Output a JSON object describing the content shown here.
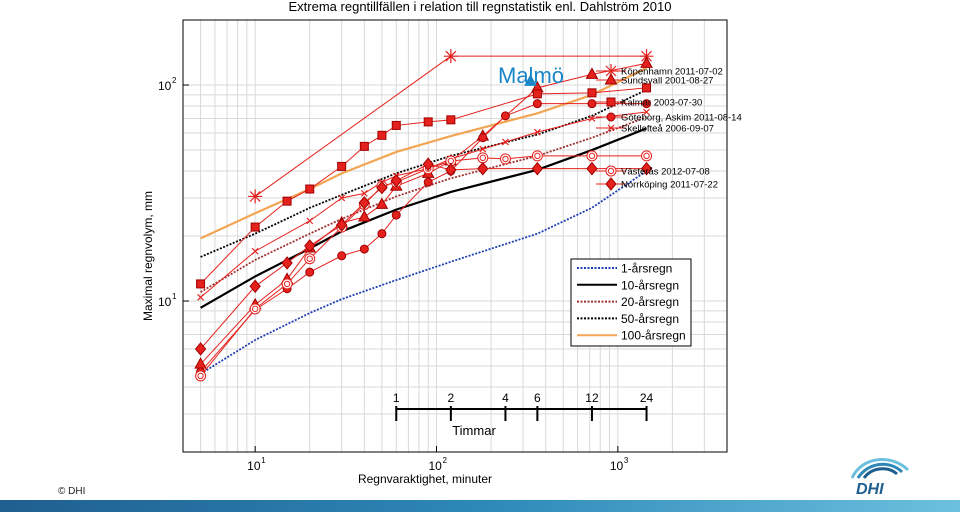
{
  "chart_data": {
    "type": "line",
    "title": "Extrema regntillfällen i relation till regnstatistik enl. Dahlström 2010",
    "xlabel": "Regnvaraktighet, minuter",
    "ylabel": "Maximal regnvolym, mm",
    "x_scale": "log",
    "y_scale": "log",
    "xlim": [
      4,
      4000
    ],
    "ylim": [
      2,
      200
    ],
    "grid": true,
    "x_ticks": [
      {
        "value": 10,
        "base": "10",
        "exp": "1"
      },
      {
        "value": 100,
        "base": "10",
        "exp": "2"
      },
      {
        "value": 1000,
        "base": "10",
        "exp": "3"
      }
    ],
    "y_ticks": [
      {
        "value": 10,
        "base": "10",
        "exp": "1"
      },
      {
        "value": 100,
        "base": "10",
        "exp": "2"
      }
    ],
    "annotations": {
      "city_label": "Malmö",
      "timmar_label": "Timmar",
      "hour_ticks": [
        {
          "label": "1",
          "minutes": 60
        },
        {
          "label": "2",
          "minutes": 120
        },
        {
          "label": "4",
          "minutes": 240
        },
        {
          "label": "6",
          "minutes": 360
        },
        {
          "label": "12",
          "minutes": 720
        },
        {
          "label": "24",
          "minutes": 1440
        }
      ]
    },
    "statistic_series": [
      {
        "name": "1-årsregn",
        "color": "#1f3fb5",
        "style": "dotted",
        "x": [
          5,
          10,
          20,
          30,
          60,
          120,
          360,
          720,
          1440
        ],
        "y": [
          4.6,
          6.6,
          8.8,
          10.2,
          12.5,
          15.2,
          20.5,
          27,
          40
        ]
      },
      {
        "name": "10-årsregn",
        "color": "#000000",
        "style": "solid",
        "x": [
          5,
          10,
          20,
          30,
          60,
          120,
          360,
          720,
          1440
        ],
        "y": [
          9.3,
          13,
          17.5,
          21,
          26.5,
          32,
          40.5,
          50,
          63
        ]
      },
      {
        "name": "20-årsregn",
        "color": "#a03030",
        "style": "dotted",
        "x": [
          5,
          10,
          20,
          30,
          60,
          120,
          360,
          720,
          1440
        ],
        "y": [
          11,
          15.5,
          20.5,
          24,
          30.5,
          37,
          47,
          57,
          71
        ]
      },
      {
        "name": "50-årsregn",
        "color": "#000000",
        "style": "dotted",
        "x": [
          5,
          10,
          20,
          30,
          60,
          120,
          360,
          720,
          1440
        ],
        "y": [
          16,
          20.5,
          27,
          31,
          39,
          47,
          59,
          72,
          95
        ]
      },
      {
        "name": "100-årsregn",
        "color": "#f2a552",
        "style": "solid",
        "x": [
          5,
          10,
          20,
          30,
          60,
          120,
          360,
          720,
          1440
        ],
        "y": [
          19.5,
          25.5,
          33,
          39,
          49,
          58,
          74,
          90,
          120
        ]
      }
    ],
    "event_series": [
      {
        "name": "Köpenhamn 2011-07-02",
        "marker": "asterisk",
        "filled": false,
        "x": [
          10,
          120,
          1440
        ],
        "y": [
          30.5,
          136,
          136
        ]
      },
      {
        "name": "Sundsvall 2001-08-27",
        "marker": "triangle",
        "filled": true,
        "x": [
          5,
          10,
          15,
          20,
          30,
          40,
          50,
          60,
          90,
          120,
          180,
          360,
          720,
          1440
        ],
        "y": [
          5.1,
          9.6,
          12.6,
          17.6,
          23,
          24.5,
          28,
          34,
          39,
          44.5,
          58,
          97,
          112,
          126
        ]
      },
      {
        "name": "Kalmar 2003-07-30",
        "marker": "square",
        "filled": true,
        "x": [
          5,
          10,
          15,
          20,
          30,
          40,
          50,
          60,
          90,
          120,
          360,
          720,
          1440
        ],
        "y": [
          12,
          22,
          29,
          33,
          42,
          52,
          58.5,
          65,
          67.5,
          69,
          91,
          92,
          97
        ]
      },
      {
        "name": "Göteborg, Askim 2011-08-14",
        "marker": "circle",
        "filled": true,
        "x": [
          5,
          10,
          15,
          20,
          30,
          40,
          50,
          60,
          90,
          120,
          180,
          240,
          360,
          720,
          1440
        ],
        "y": [
          4.7,
          9.1,
          11.4,
          13.6,
          16.2,
          17.4,
          20.5,
          25,
          35.5,
          40,
          57,
          72,
          82,
          82,
          82
        ]
      },
      {
        "name": "Skellefteå 2006-09-07",
        "marker": "x",
        "filled": false,
        "x": [
          5,
          10,
          20,
          30,
          40,
          50,
          60,
          90,
          120,
          180,
          240,
          360,
          720,
          1440
        ],
        "y": [
          10.4,
          17,
          23.5,
          30,
          31.5,
          35.5,
          38,
          41,
          45.5,
          50.5,
          54.5,
          60.5,
          70,
          75
        ]
      },
      {
        "name": "Västerås 2012-07-08",
        "marker": "circle-target",
        "filled": false,
        "x": [
          5,
          10,
          15,
          20,
          30,
          40,
          50,
          60,
          90,
          120,
          180,
          240,
          360,
          720,
          1440
        ],
        "y": [
          4.5,
          9.2,
          12,
          15.7,
          22,
          28,
          34,
          35.5,
          41,
          44.5,
          46,
          45.5,
          47,
          47,
          47
        ]
      },
      {
        "name": "Norrköping  2011-07-22",
        "marker": "diamond",
        "filled": true,
        "x": [
          5,
          10,
          15,
          20,
          30,
          40,
          50,
          60,
          90,
          120,
          180,
          360,
          720,
          1440
        ],
        "y": [
          6,
          11.7,
          15,
          18,
          22.5,
          28.5,
          33.5,
          36,
          43,
          40.5,
          41,
          41,
          41,
          41
        ]
      },
      {
        "name": "Malmö",
        "marker": "triangle",
        "filled": true,
        "color": "#1a86c8",
        "x": [
          330
        ],
        "y": [
          104
        ]
      }
    ],
    "legend_statistics_placement": "lower-right",
    "legend_events_placement": "right-outside"
  },
  "footer": {
    "copyright": "© DHI",
    "logo_text": "DHI"
  },
  "colors": {
    "event_red": "#e5211d",
    "event_edge": "#a00000",
    "malmo_blue": "#1a86c8",
    "grid": "#d9d9d9",
    "band": "#1f5f8f"
  }
}
